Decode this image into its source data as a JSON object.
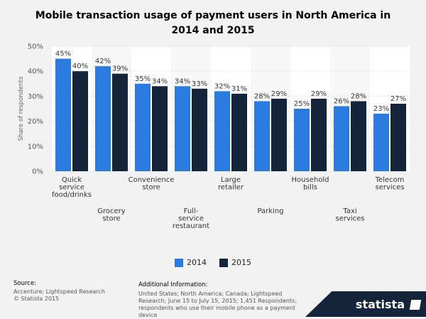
{
  "chart_data": {
    "type": "bar",
    "title": "Mobile transaction usage of payment users in North America in 2014 and 2015",
    "ylabel": "Share of respondents",
    "ylim": [
      0,
      50
    ],
    "yticks": [
      "0%",
      "10%",
      "20%",
      "30%",
      "40%",
      "50%"
    ],
    "yticks_values": [
      0,
      10,
      20,
      30,
      40,
      50
    ],
    "categories": [
      "Quick service food/drinks",
      "Grocery store",
      "Convenience store",
      "Full-service restaurant",
      "Large retailer",
      "Parking",
      "Household bills",
      "Taxi services",
      "Telecom services"
    ],
    "category_lines": [
      [
        "Quick",
        "service",
        "food/drinks"
      ],
      [
        "Grocery",
        "store"
      ],
      [
        "Convenience",
        "store"
      ],
      [
        "Full-",
        "service",
        "restaurant"
      ],
      [
        "Large",
        "retailer"
      ],
      [
        "Parking"
      ],
      [
        "Household",
        "bills"
      ],
      [
        "Taxi",
        "services"
      ],
      [
        "Telecom",
        "services"
      ]
    ],
    "series": [
      {
        "name": "2014",
        "color": "#2b7ae0",
        "values": [
          45,
          42,
          35,
          34,
          32,
          28,
          25,
          26,
          23
        ]
      },
      {
        "name": "2015",
        "color": "#14243a",
        "values": [
          40,
          39,
          34,
          33,
          31,
          29,
          29,
          28,
          27
        ]
      }
    ],
    "value_suffix": "%"
  },
  "footer": {
    "source_label": "Source:",
    "source_text": "Accenture; Lightspeed Research",
    "copyright": "© Statista 2015",
    "info_label": "Additional Information:",
    "info_text": "United States; North America; Canada; Lightspeed Research; June 15 to July 15, 2015; 1,451 Respondents; respondents who use their mobile phone as a payment device"
  },
  "brand": {
    "name": "statista"
  }
}
